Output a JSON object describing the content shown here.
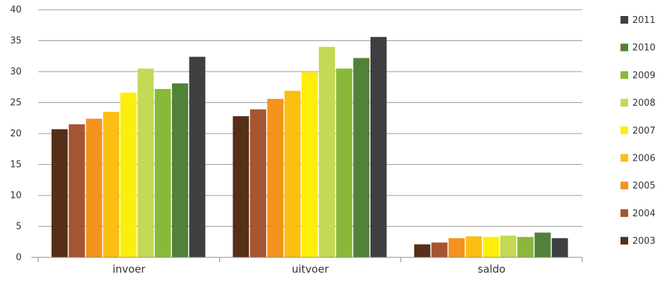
{
  "chart_data": {
    "type": "bar",
    "categories": [
      "invoer",
      "uitvoer",
      "saldo"
    ],
    "series": [
      {
        "name": "2003",
        "color": "#553016",
        "values": [
          20.7,
          22.8,
          2.1
        ]
      },
      {
        "name": "2004",
        "color": "#a65532",
        "values": [
          21.5,
          23.9,
          2.4
        ]
      },
      {
        "name": "2005",
        "color": "#f4921e",
        "values": [
          22.4,
          25.6,
          3.1
        ]
      },
      {
        "name": "2006",
        "color": "#fcbe11",
        "values": [
          23.5,
          26.9,
          3.4
        ]
      },
      {
        "name": "2007",
        "color": "#fdee0c",
        "values": [
          26.6,
          29.9,
          3.3
        ]
      },
      {
        "name": "2008",
        "color": "#c4d955",
        "values": [
          30.5,
          34.0,
          3.5
        ]
      },
      {
        "name": "2009",
        "color": "#8ab83a",
        "values": [
          27.2,
          30.5,
          3.3
        ]
      },
      {
        "name": "2010",
        "color": "#52823a",
        "values": [
          28.1,
          32.2,
          4.0
        ]
      },
      {
        "name": "2011",
        "color": "#3f3f42",
        "values": [
          32.4,
          35.6,
          3.1
        ]
      }
    ],
    "ylim": [
      0,
      40
    ],
    "yticks": [
      0,
      5,
      10,
      15,
      20,
      25,
      30,
      35,
      40
    ],
    "grid": true,
    "legend_position": "right",
    "legend_order": "reverse"
  }
}
